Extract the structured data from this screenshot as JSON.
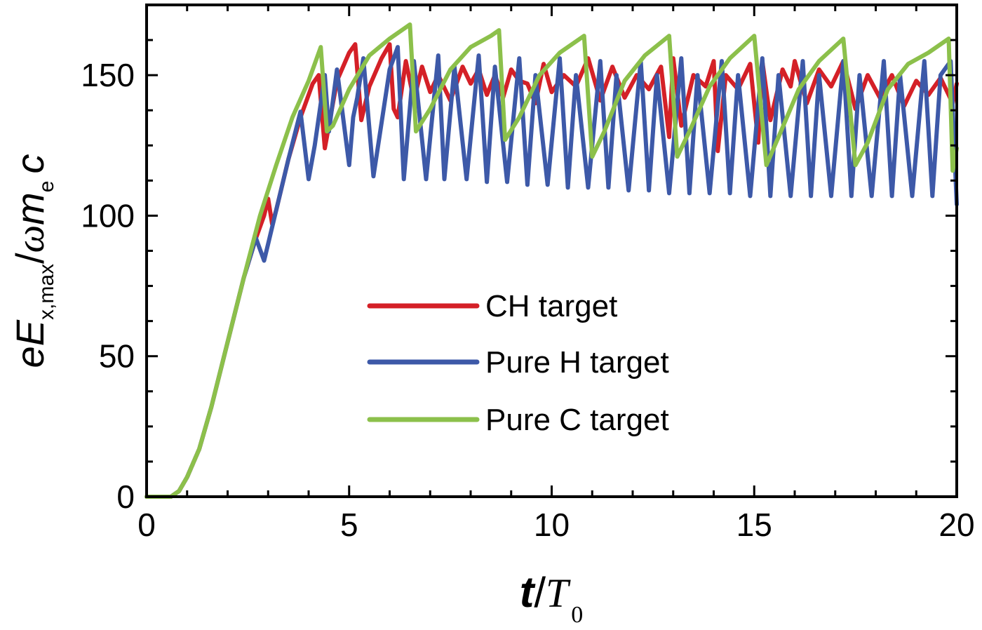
{
  "chart_data": {
    "type": "line",
    "xlabel": {
      "t": "t",
      "slash": "/",
      "T": "T",
      "sub": "0"
    },
    "ylabel": {
      "e": "e",
      "E": "E",
      "sub1": "x,max",
      "slash": "/",
      "omega": "ω",
      "m": "m",
      "sub2": "e",
      "c": "c"
    },
    "xlim": [
      0,
      20
    ],
    "ylim": [
      0,
      175
    ],
    "xticks": [
      "0",
      "5",
      "10",
      "15",
      "20"
    ],
    "yticks": [
      "0",
      "50",
      "100",
      "150"
    ],
    "xtick_values": [
      0,
      5,
      10,
      15,
      20
    ],
    "ytick_values": [
      0,
      50,
      100,
      150
    ],
    "grid": false,
    "legend_position": "center",
    "series": [
      {
        "name": "CH target",
        "color": "#d42027",
        "x": [
          0,
          0.6,
          0.8,
          1.0,
          1.3,
          1.6,
          2.0,
          2.4,
          2.7,
          2.9,
          3.0,
          3.1,
          3.2,
          3.5,
          3.8,
          4.1,
          4.25,
          4.4,
          4.5,
          4.7,
          5.0,
          5.15,
          5.3,
          5.5,
          5.8,
          6.0,
          6.1,
          6.2,
          6.4,
          6.6,
          6.8,
          7.0,
          7.2,
          7.5,
          7.8,
          8.0,
          8.2,
          8.4,
          8.6,
          8.8,
          9.0,
          9.2,
          9.4,
          9.6,
          9.8,
          10.0,
          10.3,
          10.6,
          10.9,
          11.2,
          11.5,
          11.8,
          12.1,
          12.4,
          12.7,
          12.9,
          13.0,
          13.2,
          13.5,
          13.8,
          14.0,
          14.1,
          14.3,
          14.6,
          14.9,
          15.1,
          15.2,
          15.4,
          15.7,
          15.9,
          16.0,
          16.3,
          16.6,
          16.9,
          17.2,
          17.5,
          17.8,
          18.1,
          18.4,
          18.7,
          19.0,
          19.3,
          19.6,
          19.9,
          20.0
        ],
        "y": [
          0,
          0,
          2,
          7,
          17,
          32,
          55,
          78,
          92,
          100,
          106,
          97,
          102,
          120,
          135,
          147,
          150,
          124,
          132,
          148,
          158,
          161,
          134,
          146,
          156,
          161,
          138,
          135,
          155,
          141,
          153,
          144,
          150,
          141,
          153,
          147,
          152,
          143,
          150,
          142,
          152,
          148,
          147,
          140,
          154,
          144,
          150,
          146,
          156,
          141,
          153,
          142,
          150,
          145,
          153,
          128,
          156,
          132,
          150,
          146,
          155,
          123,
          150,
          145,
          154,
          126,
          155,
          134,
          152,
          146,
          155,
          140,
          152,
          146,
          155,
          138,
          150,
          142,
          150,
          139,
          148,
          143,
          149,
          140,
          147
        ]
      },
      {
        "name": "Pure H target",
        "color": "#3d59a8",
        "x": [
          0,
          0.6,
          0.8,
          1.0,
          1.3,
          1.6,
          2.0,
          2.4,
          2.7,
          2.9,
          3.0,
          3.2,
          3.5,
          3.8,
          4.0,
          4.15,
          4.4,
          4.5,
          4.7,
          5.0,
          5.1,
          5.2,
          5.35,
          5.6,
          6.0,
          6.2,
          6.35,
          6.6,
          6.9,
          7.2,
          7.35,
          7.6,
          7.9,
          8.2,
          8.4,
          8.6,
          8.9,
          9.2,
          9.4,
          9.6,
          9.9,
          10.2,
          10.4,
          10.6,
          10.9,
          11.2,
          11.4,
          11.6,
          11.9,
          12.2,
          12.4,
          12.6,
          12.9,
          13.2,
          13.4,
          13.6,
          13.9,
          14.2,
          14.4,
          14.6,
          14.9,
          15.2,
          15.4,
          15.6,
          15.9,
          16.2,
          16.4,
          16.6,
          16.9,
          17.2,
          17.4,
          17.6,
          17.9,
          18.2,
          18.4,
          18.6,
          18.9,
          19.2,
          19.4,
          19.6,
          19.85,
          20.0
        ],
        "y": [
          0,
          0,
          2,
          7,
          17,
          32,
          55,
          78,
          92,
          84,
          90,
          102,
          120,
          137,
          113,
          125,
          150,
          130,
          152,
          118,
          135,
          142,
          156,
          114,
          152,
          160,
          113,
          155,
          113,
          157,
          113,
          153,
          113,
          157,
          112,
          153,
          112,
          156,
          111,
          150,
          111,
          156,
          110,
          150,
          110,
          155,
          110,
          150,
          109,
          155,
          109,
          150,
          108,
          156,
          108,
          150,
          108,
          155,
          108,
          150,
          107,
          156,
          107,
          150,
          107,
          155,
          107,
          150,
          107,
          155,
          107,
          150,
          107,
          155,
          107,
          150,
          107,
          155,
          107,
          150,
          155,
          104
        ]
      },
      {
        "name": "Pure C target",
        "color": "#8cc04b",
        "x": [
          0,
          0.6,
          0.8,
          1.0,
          1.3,
          1.6,
          2.0,
          2.4,
          2.8,
          3.2,
          3.6,
          4.0,
          4.3,
          4.45,
          4.6,
          5.0,
          5.5,
          6.0,
          6.5,
          6.65,
          7.0,
          7.5,
          8.0,
          8.5,
          8.7,
          8.85,
          9.2,
          9.7,
          10.2,
          10.8,
          11.0,
          11.3,
          11.8,
          12.3,
          12.9,
          13.1,
          13.4,
          13.9,
          14.4,
          15.0,
          15.3,
          15.6,
          16.1,
          16.6,
          17.2,
          17.5,
          17.8,
          18.3,
          18.8,
          19.3,
          19.8,
          19.9,
          20.0
        ],
        "y": [
          0,
          0,
          2,
          7,
          17,
          32,
          55,
          78,
          100,
          118,
          135,
          148,
          160,
          130,
          132,
          145,
          157,
          163,
          168,
          130,
          138,
          152,
          160,
          164,
          166,
          127,
          135,
          150,
          158,
          164,
          121,
          130,
          148,
          157,
          164,
          121,
          130,
          146,
          156,
          164,
          118,
          128,
          145,
          155,
          163,
          118,
          126,
          145,
          154,
          158,
          163,
          116,
          124
        ]
      }
    ]
  }
}
